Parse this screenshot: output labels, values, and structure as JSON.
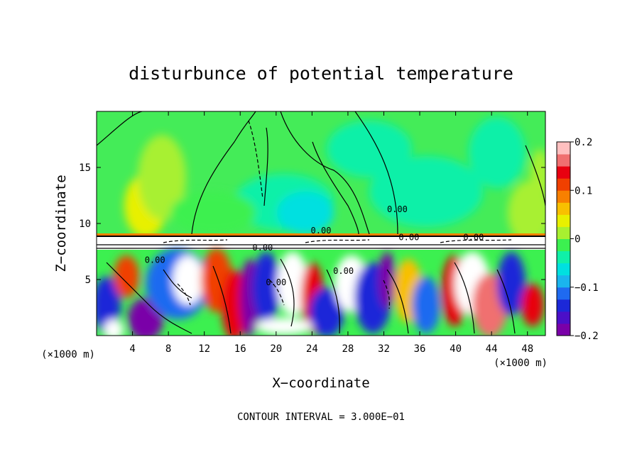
{
  "chart_data": {
    "type": "heatmap",
    "title": "disturbunce of potential temperature",
    "xlabel": "X−coordinate",
    "ylabel": "Z−coordinate",
    "x_unit_left": "(×1000 m)",
    "x_unit_right": "(×1000 m)",
    "footer": "CONTOUR INTERVAL = 3.000E−01",
    "xlim": [
      0,
      50
    ],
    "ylim": [
      0,
      20
    ],
    "x_ticks": [
      4,
      8,
      12,
      16,
      20,
      24,
      28,
      32,
      36,
      40,
      44,
      48
    ],
    "x_tick_labels": [
      "4",
      "8",
      "12",
      "16",
      "20",
      "24",
      "28",
      "32",
      "36",
      "40",
      "44",
      "48"
    ],
    "y_ticks": [
      5,
      10,
      15
    ],
    "y_tick_labels": [
      "5",
      "10",
      "15"
    ],
    "contour_labels": [
      {
        "text": "0.00",
        "x": 6.5,
        "y": 6.5
      },
      {
        "text": "0.00",
        "x": 20.0,
        "y": 4.5
      },
      {
        "text": "0.00",
        "x": 25.0,
        "y": 9.1
      },
      {
        "text": "0.00",
        "x": 27.5,
        "y": 5.5
      },
      {
        "text": "0.00",
        "x": 33.5,
        "y": 11.0
      },
      {
        "text": "0.00",
        "x": 18.5,
        "y": 7.6
      },
      {
        "text": "0.00",
        "x": 34.8,
        "y": 8.5
      },
      {
        "text": "0.00",
        "x": 42.0,
        "y": 8.5
      }
    ],
    "colorbar": {
      "min": -0.2,
      "max": 0.2,
      "ticks": [
        0.2,
        0.1,
        0,
        -0.1,
        -0.2
      ],
      "tick_labels": [
        "0.2",
        "0.1",
        "0",
        "−0.1",
        "−0.2"
      ],
      "colors": [
        "#7a00a8",
        "#4b0fc8",
        "#1c28d8",
        "#1f6af0",
        "#1ab4ee",
        "#00e0e0",
        "#10f0a8",
        "#3cf050",
        "#a8f030",
        "#e8f000",
        "#f8c000",
        "#f88000",
        "#f04000",
        "#e80010",
        "#f07070",
        "#ffc0c0"
      ]
    }
  }
}
